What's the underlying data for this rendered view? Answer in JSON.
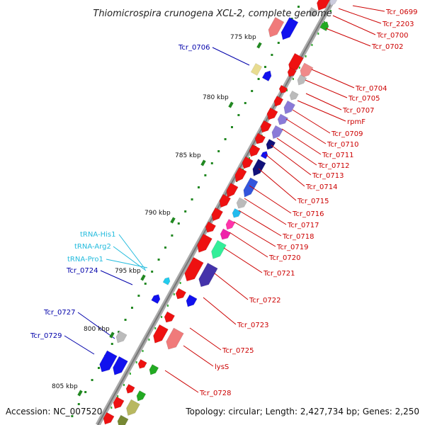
{
  "title": "Thiomicrospira crunogena XCL-2, complete genome",
  "footer": {
    "accession": "Accession: NC_007520",
    "topology": "Topology: circular; Length: 2,427,734 bp; Genes: 2,250"
  },
  "colors": {
    "red_label": "#cc0000",
    "blue_label": "#0000aa",
    "cyan_label": "#22bbdd",
    "backbone": "#999999"
  },
  "kbp_ticks": [
    {
      "label": "775 kbp"
    },
    {
      "label": "780 kbp"
    },
    {
      "label": "785 kbp"
    },
    {
      "label": "790 kbp"
    },
    {
      "label": "795 kbp"
    },
    {
      "label": "800 kbp"
    },
    {
      "label": "805 kbp"
    }
  ],
  "labels_right": [
    {
      "text": "Tcr_0699"
    },
    {
      "text": "Tcr_2203"
    },
    {
      "text": "Tcr_0700"
    },
    {
      "text": "Tcr_0702"
    },
    {
      "text": "Tcr_0704"
    },
    {
      "text": "Tcr_0705"
    },
    {
      "text": "Tcr_0707"
    },
    {
      "text": "rpmF"
    },
    {
      "text": "Tcr_0709"
    },
    {
      "text": "Tcr_0710"
    },
    {
      "text": "Tcr_0711"
    },
    {
      "text": "Tcr_0712"
    },
    {
      "text": "Tcr_0713"
    },
    {
      "text": "Tcr_0714"
    },
    {
      "text": "Tcr_0715"
    },
    {
      "text": "Tcr_0716"
    },
    {
      "text": "Tcr_0717"
    },
    {
      "text": "Tcr_0718"
    },
    {
      "text": "Tcr_0719"
    },
    {
      "text": "Tcr_0720"
    },
    {
      "text": "Tcr_0721"
    },
    {
      "text": "Tcr_0722"
    },
    {
      "text": "Tcr_0723"
    },
    {
      "text": "Tcr_0725"
    },
    {
      "text": "lysS"
    },
    {
      "text": "Tcr_0728"
    }
  ],
  "labels_left": [
    {
      "text": "Tcr_0706"
    },
    {
      "text": "tRNA-His1"
    },
    {
      "text": "tRNA-Arg2"
    },
    {
      "text": "tRNA-Pro1"
    },
    {
      "text": "Tcr_0724"
    },
    {
      "text": "Tcr_0727"
    },
    {
      "text": "Tcr_0729"
    }
  ]
}
